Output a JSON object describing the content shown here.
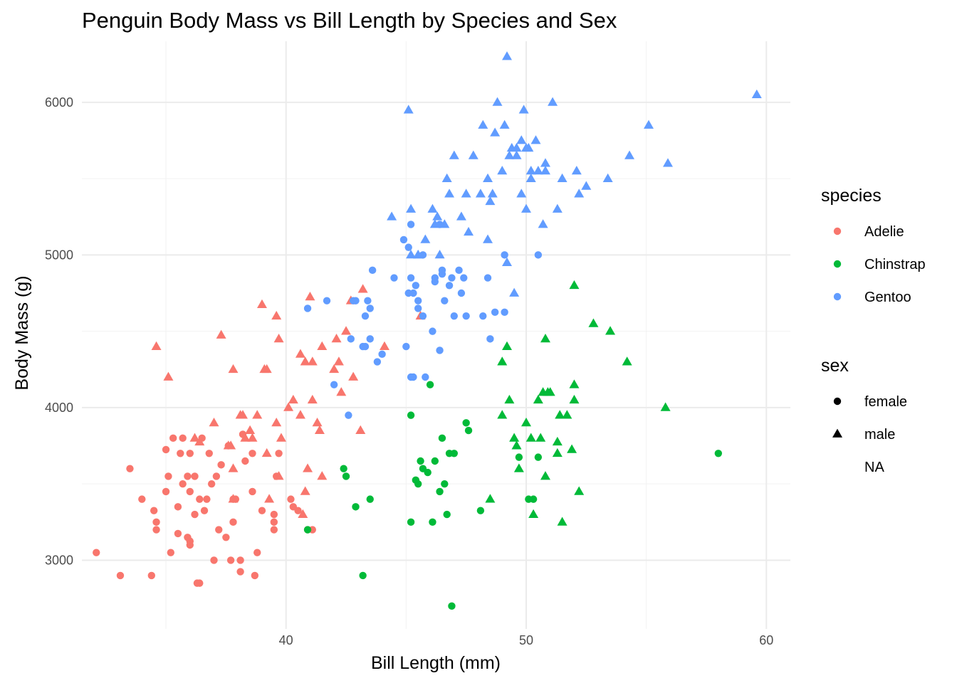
{
  "chart_data": {
    "type": "scatter",
    "title": "Penguin Body Mass vs Bill Length by Species and Sex",
    "xlabel": "Bill Length (mm)",
    "ylabel": "Body Mass (g)",
    "xlim": [
      31.5,
      61
    ],
    "ylim": [
      2550,
      6400
    ],
    "x_ticks": [
      40,
      50,
      60
    ],
    "y_ticks": [
      3000,
      4000,
      5000,
      6000
    ],
    "x_tick_labels": [
      "40",
      "50",
      "60"
    ],
    "y_tick_labels": [
      "3000",
      "4000",
      "5000",
      "6000"
    ],
    "grid": true,
    "legend_position": "right",
    "legend": {
      "color": {
        "title": "species",
        "entries": [
          {
            "label": "Adelie",
            "color": "#F8766D"
          },
          {
            "label": "Chinstrap",
            "color": "#00BA38"
          },
          {
            "label": "Gentoo",
            "color": "#619CFF"
          }
        ]
      },
      "shape": {
        "title": "sex",
        "entries": [
          {
            "label": "female",
            "shape": "circle"
          },
          {
            "label": "male",
            "shape": "triangle"
          },
          {
            "label": "NA",
            "shape": "none"
          }
        ]
      }
    },
    "series": [
      {
        "species": "Adelie",
        "sex": "female",
        "x": [
          32.1,
          33.1,
          33.5,
          34.0,
          34.4,
          34.5,
          34.6,
          35.0,
          35.0,
          35.2,
          35.3,
          35.5,
          35.5,
          35.6,
          35.7,
          35.9,
          35.9,
          36.0,
          36.0,
          36.0,
          36.2,
          36.2,
          36.3,
          36.4,
          36.5,
          36.6,
          36.7,
          36.8,
          36.9,
          37.0,
          37.1,
          37.2,
          37.3,
          37.5,
          37.6,
          37.7,
          37.8,
          37.8,
          37.9,
          38.1,
          38.1,
          38.2,
          38.3,
          38.6,
          38.6,
          38.7,
          38.8,
          39.0,
          39.5,
          39.5,
          39.5,
          39.6,
          39.7,
          40.2,
          40.3,
          40.5,
          40.9,
          41.1,
          36.4,
          35.7,
          36.0,
          35.1,
          34.6
        ],
        "y": [
          3050,
          2900,
          3600,
          3400,
          2900,
          3325,
          3200,
          3450,
          3725,
          3050,
          3800,
          3350,
          3175,
          3700,
          3800,
          3150,
          3550,
          3700,
          3450,
          3125,
          3300,
          3550,
          2850,
          2850,
          3800,
          3325,
          3400,
          3700,
          3500,
          3000,
          3550,
          3200,
          3625,
          3150,
          3750,
          3000,
          3250,
          3400,
          3400,
          3000,
          2925,
          3825,
          3650,
          3700,
          3450,
          2900,
          3050,
          3325,
          3300,
          3200,
          3250,
          3550,
          3700,
          3400,
          3350,
          3325,
          3200,
          3200,
          3400,
          3500,
          3100,
          3550,
          3250
        ]
      },
      {
        "species": "Adelie",
        "sex": "male",
        "x": [
          34.6,
          35.1,
          36.2,
          36.4,
          37.0,
          37.3,
          37.6,
          37.7,
          37.8,
          37.8,
          38.1,
          38.2,
          38.5,
          38.6,
          38.8,
          39.0,
          39.1,
          39.2,
          39.3,
          39.6,
          39.7,
          39.8,
          40.1,
          40.3,
          40.6,
          40.6,
          40.8,
          41.1,
          41.1,
          41.3,
          41.5,
          42.0,
          42.1,
          42.2,
          42.3,
          42.5,
          42.7,
          42.8,
          43.1,
          43.2,
          44.1,
          45.6,
          40.9,
          41.0,
          39.2,
          37.8,
          38.3,
          39.7,
          40.7,
          41.5,
          40.8,
          39.6,
          41.4
        ],
        "y": [
          4400,
          4200,
          3800,
          3775,
          3900,
          4475,
          3750,
          3750,
          4250,
          3600,
          3950,
          3950,
          3850,
          3800,
          3950,
          4675,
          4250,
          4250,
          3400,
          4600,
          4450,
          3800,
          4000,
          4050,
          3950,
          4350,
          4300,
          4300,
          4050,
          3900,
          4400,
          4250,
          4450,
          4300,
          4100,
          4500,
          4700,
          4200,
          3850,
          4775,
          4400,
          4600,
          3600,
          4725,
          3700,
          3400,
          3800,
          3550,
          3300,
          3550,
          3450,
          3900,
          3850
        ]
      },
      {
        "species": "Chinstrap",
        "sex": "female",
        "x": [
          42.4,
          42.5,
          42.9,
          43.2,
          43.5,
          45.2,
          45.2,
          45.4,
          45.5,
          45.6,
          45.7,
          45.9,
          46.0,
          46.1,
          46.2,
          46.4,
          46.5,
          46.6,
          46.7,
          46.8,
          46.9,
          47.0,
          47.5,
          47.6,
          48.1,
          49.7,
          50.1,
          50.3,
          50.5,
          58.0,
          40.9
        ],
        "y": [
          3600,
          3550,
          3350,
          2900,
          3400,
          3250,
          3950,
          3525,
          3500,
          3650,
          3600,
          3575,
          4150,
          3250,
          3650,
          3450,
          3800,
          3500,
          3300,
          3700,
          2700,
          3700,
          3900,
          3850,
          3325,
          3675,
          3400,
          3400,
          3675,
          3700,
          3200
        ]
      },
      {
        "species": "Chinstrap",
        "sex": "male",
        "x": [
          48.5,
          49.0,
          49.0,
          49.2,
          49.3,
          49.5,
          49.6,
          49.7,
          50.0,
          50.2,
          50.3,
          50.5,
          50.6,
          50.7,
          50.8,
          50.8,
          50.9,
          51.0,
          51.3,
          51.4,
          51.5,
          51.7,
          52.0,
          52.0,
          52.0,
          52.2,
          52.8,
          53.5,
          54.2,
          55.8,
          51.9,
          51.3
        ],
        "y": [
          3400,
          4300,
          3950,
          4400,
          4050,
          3800,
          3750,
          3600,
          3900,
          3800,
          3300,
          4050,
          3800,
          4100,
          4450,
          3550,
          4100,
          4100,
          3700,
          3950,
          3250,
          3950,
          4800,
          4150,
          4050,
          3450,
          4550,
          4500,
          4300,
          4000,
          3725,
          3775
        ]
      },
      {
        "species": "Gentoo",
        "sex": "female",
        "x": [
          40.9,
          42.0,
          42.6,
          42.7,
          42.8,
          42.9,
          43.2,
          43.3,
          43.3,
          43.4,
          43.5,
          43.5,
          43.6,
          43.8,
          44.0,
          44.5,
          44.9,
          45.0,
          45.1,
          45.1,
          45.2,
          45.2,
          45.3,
          45.3,
          45.4,
          45.5,
          45.5,
          45.7,
          45.8,
          46.1,
          46.2,
          46.4,
          46.5,
          46.5,
          46.6,
          46.8,
          46.9,
          47.0,
          47.2,
          47.4,
          47.5,
          48.2,
          48.4,
          48.5,
          48.7,
          49.1,
          49.1,
          50.5,
          45.2,
          46.2,
          47.3,
          41.7,
          45.7,
          46.4
        ],
        "y": [
          4650,
          4150,
          3950,
          4450,
          4700,
          4700,
          4400,
          4400,
          4600,
          4700,
          4450,
          4650,
          4900,
          4300,
          4350,
          4850,
          5100,
          4400,
          4750,
          5050,
          4200,
          5200,
          4200,
          4750,
          4800,
          4700,
          4650,
          4600,
          4200,
          4500,
          4825,
          4375,
          4875,
          4900,
          4700,
          4800,
          4850,
          4600,
          4900,
          4850,
          4600,
          4600,
          4850,
          4450,
          4625,
          4625,
          5000,
          5000,
          4850,
          4850,
          4750,
          4700,
          5000,
          5200
        ]
      },
      {
        "species": "Gentoo",
        "sex": "male",
        "x": [
          44.4,
          45.1,
          45.2,
          45.2,
          45.5,
          45.8,
          46.1,
          46.2,
          46.3,
          46.4,
          46.7,
          46.8,
          47.0,
          47.3,
          47.5,
          47.6,
          47.8,
          48.1,
          48.2,
          48.4,
          48.4,
          48.6,
          48.7,
          48.8,
          49.0,
          49.1,
          49.2,
          49.3,
          49.4,
          49.5,
          49.6,
          49.8,
          49.9,
          50.0,
          50.0,
          50.1,
          50.2,
          50.4,
          50.5,
          50.7,
          50.8,
          50.8,
          51.1,
          51.3,
          51.5,
          52.1,
          52.2,
          52.5,
          53.4,
          54.3,
          55.1,
          55.9,
          59.6,
          49.6,
          50.2,
          45.5,
          46.6,
          48.5,
          49.8,
          49.2
        ],
        "y": [
          5250,
          5950,
          5300,
          5000,
          5000,
          5100,
          5300,
          5200,
          5250,
          5000,
          5500,
          5400,
          5650,
          5250,
          5400,
          5150,
          5650,
          5400,
          5850,
          5100,
          5500,
          5400,
          5800,
          6000,
          5550,
          5850,
          6300,
          5650,
          5700,
          4750,
          5700,
          5400,
          5950,
          5700,
          5300,
          5700,
          5550,
          5750,
          5550,
          5200,
          5550,
          5600,
          6000,
          5300,
          5500,
          5550,
          5400,
          5450,
          5500,
          5650,
          5850,
          5600,
          6050,
          5650,
          5500,
          5000,
          5200,
          5350,
          5750,
          4950
        ]
      }
    ]
  }
}
